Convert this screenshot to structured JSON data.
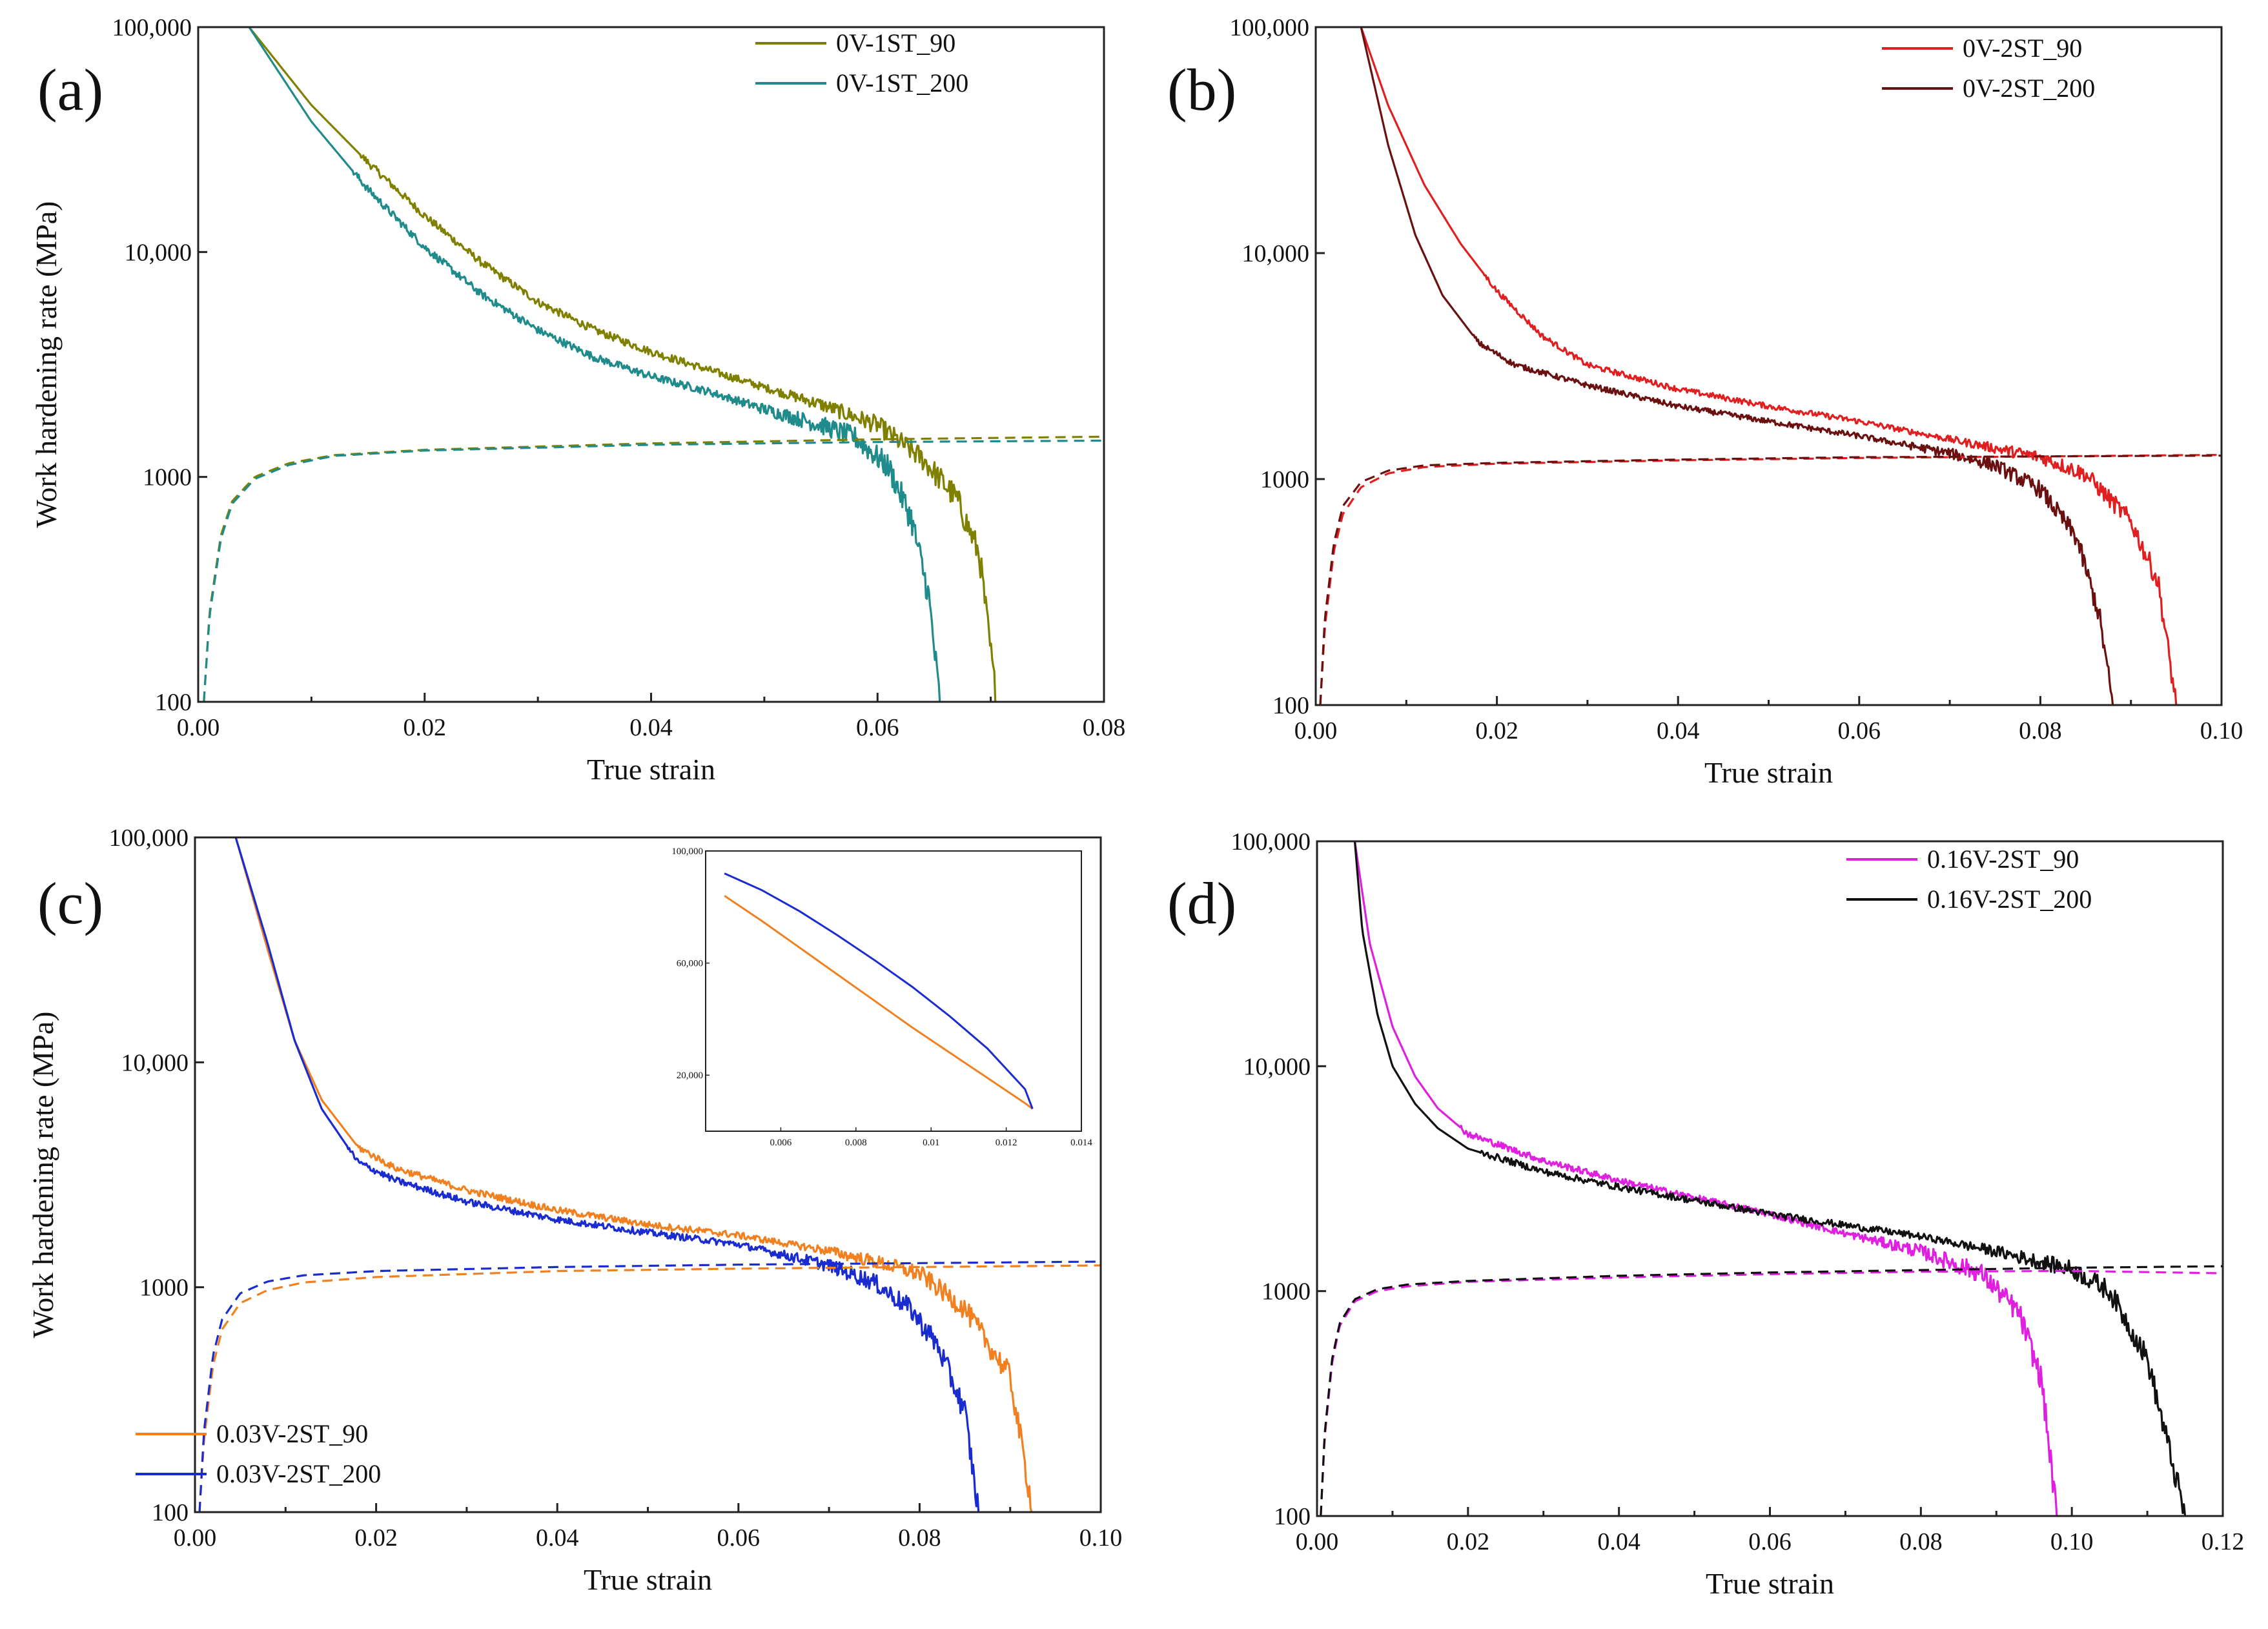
{
  "chart_data": [
    {
      "panel": "(a)",
      "type": "line",
      "xlabel": "True strain",
      "ylabel": "Work hardening rate (MPa)",
      "xlim": [
        0,
        0.08
      ],
      "ylim": [
        100,
        100000
      ],
      "yscale": "log",
      "xticks": [
        "0.00",
        "0.02",
        "0.04",
        "0.06",
        "0.08"
      ],
      "yticks": [
        "100",
        "1000",
        "10,000",
        "100,000"
      ],
      "legend_position": "top-right",
      "series": [
        {
          "name": "0V-1ST_90",
          "color": "#808000",
          "style": "solid",
          "noise": 0.035,
          "x": [
            0.0045,
            0.01,
            0.015,
            0.02,
            0.025,
            0.03,
            0.035,
            0.04,
            0.045,
            0.05,
            0.055,
            0.06,
            0.064,
            0.067,
            0.069,
            0.0705
          ],
          "y": [
            100000,
            45000,
            25000,
            14500,
            9000,
            6000,
            4500,
            3600,
            3000,
            2500,
            2100,
            1700,
            1200,
            800,
            450,
            100
          ]
        },
        {
          "name": "0V-1ST_200",
          "color": "#1f8b8b",
          "style": "solid",
          "noise": 0.035,
          "x": [
            0.0045,
            0.01,
            0.015,
            0.02,
            0.025,
            0.03,
            0.035,
            0.04,
            0.045,
            0.05,
            0.055,
            0.058,
            0.061,
            0.063,
            0.0645,
            0.0655
          ],
          "y": [
            100000,
            38000,
            19000,
            10500,
            6500,
            4500,
            3400,
            2800,
            2400,
            2000,
            1700,
            1500,
            1100,
            650,
            300,
            100
          ]
        },
        {
          "name": "",
          "color": "#808000",
          "style": "dashed",
          "noise": 0,
          "x": [
            0.0005,
            0.001,
            0.002,
            0.003,
            0.005,
            0.008,
            0.012,
            0.02,
            0.04,
            0.06,
            0.08
          ],
          "y": [
            100,
            250,
            550,
            780,
            1000,
            1150,
            1250,
            1320,
            1410,
            1470,
            1510
          ]
        },
        {
          "name": "",
          "color": "#1f8b8b",
          "style": "dashed",
          "noise": 0,
          "x": [
            0.0005,
            0.001,
            0.002,
            0.003,
            0.005,
            0.008,
            0.012,
            0.02,
            0.04,
            0.06,
            0.08
          ],
          "y": [
            100,
            240,
            530,
            760,
            980,
            1130,
            1240,
            1310,
            1390,
            1430,
            1450
          ]
        }
      ]
    },
    {
      "panel": "(b)",
      "type": "line",
      "xlabel": "True strain",
      "ylabel": "",
      "xlim": [
        0,
        0.1
      ],
      "ylim": [
        100,
        100000
      ],
      "yscale": "log",
      "xticks": [
        "0.00",
        "0.02",
        "0.04",
        "0.06",
        "0.08",
        "0.10"
      ],
      "yticks": [
        "100",
        "1000",
        "10,000",
        "100,000"
      ],
      "legend_position": "top-right",
      "series": [
        {
          "name": "0V-2ST_90",
          "color": "#e02020",
          "style": "solid",
          "noise": 0.025,
          "x": [
            0.005,
            0.008,
            0.012,
            0.016,
            0.02,
            0.025,
            0.03,
            0.04,
            0.05,
            0.06,
            0.07,
            0.08,
            0.085,
            0.09,
            0.093,
            0.095
          ],
          "y": [
            100000,
            45000,
            20000,
            11000,
            6800,
            4300,
            3200,
            2500,
            2100,
            1800,
            1500,
            1250,
            1050,
            650,
            350,
            100
          ]
        },
        {
          "name": "0V-2ST_200",
          "color": "#6b1010",
          "style": "solid",
          "noise": 0.025,
          "x": [
            0.005,
            0.008,
            0.011,
            0.014,
            0.018,
            0.022,
            0.03,
            0.04,
            0.05,
            0.06,
            0.07,
            0.075,
            0.08,
            0.084,
            0.0865,
            0.088
          ],
          "y": [
            100000,
            30000,
            12000,
            6500,
            4000,
            3200,
            2600,
            2100,
            1800,
            1550,
            1300,
            1150,
            900,
            550,
            250,
            100
          ]
        },
        {
          "name": "",
          "color": "#e02020",
          "style": "dashed",
          "noise": 0,
          "x": [
            0.0005,
            0.001,
            0.002,
            0.003,
            0.005,
            0.008,
            0.012,
            0.02,
            0.04,
            0.06,
            0.08,
            0.1
          ],
          "y": [
            100,
            220,
            480,
            700,
            920,
            1060,
            1130,
            1170,
            1210,
            1240,
            1260,
            1280
          ]
        },
        {
          "name": "",
          "color": "#6b1010",
          "style": "dashed",
          "noise": 0,
          "x": [
            0.0005,
            0.001,
            0.002,
            0.003,
            0.005,
            0.008,
            0.012,
            0.02,
            0.04,
            0.06,
            0.08,
            0.1
          ],
          "y": [
            100,
            240,
            520,
            760,
            970,
            1090,
            1150,
            1180,
            1220,
            1250,
            1260,
            1270
          ]
        }
      ]
    },
    {
      "panel": "(c)",
      "type": "line",
      "xlabel": "True strain",
      "ylabel": "Work hardening rate (MPa)",
      "xlim": [
        0,
        0.1
      ],
      "ylim": [
        100,
        100000
      ],
      "yscale": "log",
      "xticks": [
        "0.00",
        "0.02",
        "0.04",
        "0.06",
        "0.08",
        "0.10"
      ],
      "yticks": [
        "100",
        "1000",
        "10,000",
        "100,000"
      ],
      "legend_position": "bottom-left",
      "series": [
        {
          "name": "0.03V-2ST_90",
          "color": "#f08020",
          "style": "solid",
          "noise": 0.03,
          "x": [
            0.0045,
            0.008,
            0.011,
            0.014,
            0.018,
            0.022,
            0.03,
            0.04,
            0.05,
            0.06,
            0.07,
            0.075,
            0.08,
            0.085,
            0.09,
            0.0925
          ],
          "y": [
            100000,
            32000,
            12500,
            6800,
            4200,
            3400,
            2700,
            2200,
            1900,
            1700,
            1450,
            1300,
            1150,
            800,
            400,
            100
          ]
        },
        {
          "name": "0.03V-2ST_200",
          "color": "#1a2bd0",
          "style": "solid",
          "noise": 0.03,
          "x": [
            0.0045,
            0.008,
            0.011,
            0.014,
            0.018,
            0.022,
            0.03,
            0.04,
            0.05,
            0.06,
            0.07,
            0.075,
            0.079,
            0.082,
            0.085,
            0.0865
          ],
          "y": [
            100000,
            34000,
            12500,
            6200,
            3600,
            3000,
            2400,
            2000,
            1750,
            1550,
            1250,
            1050,
            800,
            550,
            280,
            100
          ]
        },
        {
          "name": "",
          "color": "#f08020",
          "style": "dashed",
          "noise": 0,
          "x": [
            0.0005,
            0.001,
            0.002,
            0.003,
            0.005,
            0.008,
            0.012,
            0.02,
            0.04,
            0.06,
            0.08,
            0.1
          ],
          "y": [
            100,
            210,
            450,
            650,
            850,
            970,
            1050,
            1110,
            1180,
            1210,
            1230,
            1250
          ]
        },
        {
          "name": "",
          "color": "#1a2bd0",
          "style": "dashed",
          "noise": 0,
          "x": [
            0.0005,
            0.001,
            0.002,
            0.003,
            0.005,
            0.008,
            0.012,
            0.02,
            0.04,
            0.06,
            0.08,
            0.1
          ],
          "y": [
            100,
            230,
            500,
            720,
            940,
            1060,
            1130,
            1180,
            1230,
            1260,
            1280,
            1300
          ]
        }
      ],
      "inset": {
        "xlim": [
          0.004,
          0.014
        ],
        "ylim": [
          0,
          100000
        ],
        "xticks": [
          "0.006",
          "0.008",
          "0.01",
          "0.012",
          "0.014"
        ],
        "yticks": [
          "20,000",
          "60,000",
          "100,000"
        ],
        "series": [
          {
            "name": "0.03V-2ST_90",
            "color": "#f08020",
            "x": [
              0.0045,
              0.0055,
              0.0065,
              0.0075,
              0.0085,
              0.0095,
              0.0105,
              0.0115,
              0.0125,
              0.0127
            ],
            "y": [
              84000,
              75000,
              65500,
              56000,
              46500,
              37000,
              28000,
              19000,
              10000,
              8000
            ]
          },
          {
            "name": "0.03V-2ST_200",
            "color": "#1a2bd0",
            "x": [
              0.0045,
              0.0055,
              0.0065,
              0.0075,
              0.0085,
              0.0095,
              0.0105,
              0.0115,
              0.0125,
              0.0127
            ],
            "y": [
              92000,
              86000,
              78500,
              70000,
              61000,
              51500,
              41000,
              29500,
              15000,
              8000
            ]
          }
        ]
      }
    },
    {
      "panel": "(d)",
      "type": "line",
      "xlabel": "True strain",
      "ylabel": "",
      "xlim": [
        0,
        0.12
      ],
      "ylim": [
        100,
        100000
      ],
      "yscale": "log",
      "xticks": [
        "0.00",
        "0.02",
        "0.04",
        "0.06",
        "0.08",
        "0.10",
        "0.12"
      ],
      "yticks": [
        "100",
        "1000",
        "10,000",
        "100,000"
      ],
      "legend_position": "top-right",
      "series": [
        {
          "name": "0.16V-2ST_90",
          "color": "#e020e0",
          "style": "solid",
          "noise": 0.03,
          "x": [
            0.005,
            0.007,
            0.01,
            0.013,
            0.016,
            0.02,
            0.03,
            0.04,
            0.05,
            0.06,
            0.07,
            0.08,
            0.088,
            0.093,
            0.096,
            0.098
          ],
          "y": [
            100000,
            35000,
            15000,
            9000,
            6500,
            5000,
            3800,
            3100,
            2600,
            2200,
            1800,
            1500,
            1200,
            800,
            400,
            100
          ]
        },
        {
          "name": "0.16V-2ST_200",
          "color": "#111111",
          "style": "solid",
          "noise": 0.03,
          "x": [
            0.005,
            0.006,
            0.008,
            0.01,
            0.013,
            0.016,
            0.02,
            0.03,
            0.04,
            0.06,
            0.08,
            0.09,
            0.1,
            0.105,
            0.11,
            0.115
          ],
          "y": [
            100000,
            40000,
            17000,
            10000,
            6800,
            5300,
            4300,
            3400,
            2900,
            2200,
            1750,
            1500,
            1250,
            1000,
            500,
            100
          ]
        },
        {
          "name": "",
          "color": "#e020e0",
          "style": "dashed",
          "noise": 0,
          "x": [
            0.0005,
            0.001,
            0.002,
            0.003,
            0.005,
            0.008,
            0.012,
            0.02,
            0.04,
            0.06,
            0.08,
            0.1,
            0.12
          ],
          "y": [
            100,
            220,
            480,
            700,
            900,
            1000,
            1050,
            1100,
            1150,
            1190,
            1220,
            1230,
            1200
          ]
        },
        {
          "name": "",
          "color": "#111111",
          "style": "dashed",
          "noise": 0,
          "x": [
            0.0005,
            0.001,
            0.002,
            0.003,
            0.005,
            0.008,
            0.012,
            0.02,
            0.04,
            0.06,
            0.08,
            0.1,
            0.12
          ],
          "y": [
            100,
            230,
            500,
            720,
            920,
            1020,
            1070,
            1110,
            1170,
            1210,
            1240,
            1270,
            1290
          ]
        }
      ]
    }
  ]
}
